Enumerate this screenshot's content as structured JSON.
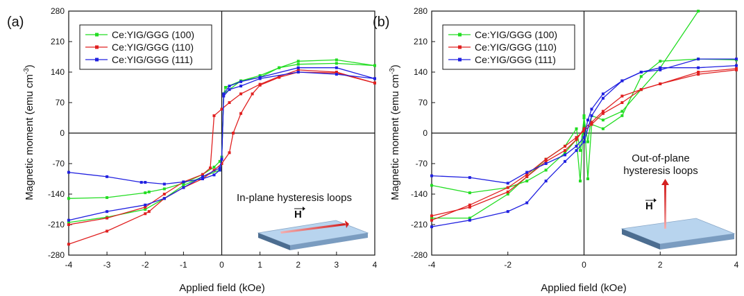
{
  "chart_data": [
    {
      "type": "line",
      "panel_label": "(a)",
      "xlabel": "Applied field (kOe)",
      "ylabel": "Magnetic moment (emu cm",
      "ylabel_sup": "-3",
      "ylabel_close": ")",
      "xlim": [
        -4,
        4
      ],
      "ylim": [
        -280,
        280
      ],
      "xticks": [
        "-4",
        "-3",
        "-2",
        "-1",
        "0",
        "1",
        "2",
        "3",
        "4"
      ],
      "yticks": [
        "-280",
        "-210",
        "-140",
        "-70",
        "0",
        "70",
        "140",
        "210",
        "280"
      ],
      "annotation": [
        "In-plane hysteresis loops"
      ],
      "field_label": "H",
      "arrow_direction": "in-plane",
      "legend_position": "top-left",
      "series": [
        {
          "name": "Ce:YIG/GGG (100)",
          "color": "#22dd22",
          "x": [
            -4,
            -3,
            -2,
            -1.9,
            -1.5,
            -1,
            -0.5,
            -0.2,
            -0.05,
            0,
            0.05,
            0.5,
            1,
            1.5,
            2,
            3,
            4
          ],
          "y": [
            -150,
            -148,
            -137,
            -135,
            -128,
            -115,
            -95,
            -78,
            -65,
            -55,
            90,
            120,
            128,
            150,
            165,
            168,
            155
          ]
        },
        {
          "name": "Ce:YIG/GGG (100)",
          "color": "#22dd22",
          "x": [
            4,
            3,
            2,
            1.5,
            1,
            0.5,
            0.1,
            0.05,
            0,
            -0.05,
            -0.5,
            -1,
            -1.5,
            -2,
            -3,
            -4
          ],
          "y": [
            155,
            160,
            158,
            150,
            132,
            120,
            105,
            90,
            -60,
            -85,
            -100,
            -120,
            -150,
            -175,
            -193,
            -205
          ]
        },
        {
          "name": "Ce:YIG/GGG (110)",
          "color": "#e02020",
          "x": [
            -4,
            -3,
            -2,
            -1.9,
            -1.5,
            -1,
            -0.5,
            -0.2,
            0,
            0.2,
            0.3,
            0.5,
            0.8,
            1,
            1.5,
            2,
            3,
            4
          ],
          "y": [
            -255,
            -225,
            -185,
            -180,
            -150,
            -125,
            -105,
            -85,
            -70,
            -45,
            0,
            45,
            90,
            110,
            128,
            140,
            138,
            115
          ]
        },
        {
          "name": "Ce:YIG/GGG (110)",
          "color": "#e02020",
          "x": [
            4,
            3,
            2,
            1.5,
            1,
            0.5,
            0.2,
            0,
            -0.2,
            -0.3,
            -0.5,
            -1,
            -1.5,
            -2,
            -3,
            -4
          ],
          "y": [
            115,
            140,
            145,
            130,
            112,
            90,
            70,
            55,
            40,
            -80,
            -95,
            -112,
            -140,
            -170,
            -195,
            -210
          ]
        },
        {
          "name": "Ce:YIG/GGG (111)",
          "color": "#2020e0",
          "x": [
            -4,
            -3,
            -2.1,
            -2,
            -1.5,
            -1,
            -0.5,
            -0.2,
            -0.05,
            0,
            0.05,
            0.2,
            0.5,
            1,
            2,
            3,
            4
          ],
          "y": [
            -90,
            -100,
            -113,
            -113,
            -117,
            -112,
            -105,
            -96,
            -85,
            -60,
            85,
            100,
            108,
            125,
            140,
            135,
            125
          ]
        },
        {
          "name": "Ce:YIG/GGG (111)",
          "color": "#2020e0",
          "x": [
            4,
            3,
            2,
            1,
            0.5,
            0.2,
            0.05,
            0,
            -0.05,
            -0.5,
            -1,
            -1.5,
            -2,
            -3,
            -4
          ],
          "y": [
            125,
            150,
            150,
            128,
            118,
            108,
            90,
            -60,
            -80,
            -100,
            -125,
            -150,
            -165,
            -180,
            -200
          ]
        }
      ]
    },
    {
      "type": "line",
      "panel_label": "(b)",
      "xlabel": "Applied field (kOe)",
      "ylabel": "Magnetic moment (emu cm",
      "ylabel_sup": "-3",
      "ylabel_close": ")",
      "xlim": [
        -4,
        4
      ],
      "ylim": [
        -280,
        280
      ],
      "xticks": [
        "-4",
        "-2",
        "0",
        "2",
        "4"
      ],
      "yticks": [
        "-280",
        "-210",
        "-140",
        "-70",
        "0",
        "70",
        "140",
        "210",
        "280"
      ],
      "annotation": [
        "Out-of-plane",
        "hysteresis loops"
      ],
      "field_label": "H",
      "arrow_direction": "out-of-plane",
      "legend_position": "top-left",
      "series": [
        {
          "name": "Ce:YIG/GGG (100)",
          "color": "#22dd22",
          "x": [
            -4,
            -3,
            -2,
            -1.5,
            -1,
            -0.5,
            -0.2,
            -0.1,
            0,
            0.1,
            0.2,
            0.5,
            1,
            1.5,
            2,
            3,
            4
          ],
          "y": [
            -120,
            -137,
            -125,
            -110,
            -85,
            -45,
            -15,
            -110,
            40,
            -105,
            20,
            10,
            40,
            130,
            165,
            170,
            168
          ]
        },
        {
          "name": "Ce:YIG/GGG (100)",
          "color": "#22dd22",
          "x": [
            3,
            2,
            1.5,
            1,
            0.5,
            0.2,
            0.1,
            0,
            -0.1,
            -0.2,
            -0.5,
            -1,
            -1.5,
            -2,
            -3,
            -4
          ],
          "y": [
            280,
            150,
            100,
            50,
            30,
            40,
            -20,
            35,
            -40,
            10,
            -30,
            -60,
            -100,
            -140,
            -195,
            -195
          ]
        },
        {
          "name": "Ce:YIG/GGG (110)",
          "color": "#e02020",
          "x": [
            -4,
            -3,
            -2,
            -1.5,
            -1,
            -0.5,
            -0.2,
            0,
            0.2,
            0.5,
            1,
            1.5,
            2,
            3,
            4
          ],
          "y": [
            -200,
            -165,
            -125,
            -95,
            -60,
            -30,
            -10,
            5,
            20,
            45,
            70,
            100,
            113,
            140,
            148
          ]
        },
        {
          "name": "Ce:YIG/GGG (110)",
          "color": "#e02020",
          "x": [
            4,
            3,
            2,
            1.5,
            1,
            0.5,
            0.2,
            0,
            -0.2,
            -0.5,
            -1,
            -1.5,
            -2,
            -3,
            -4
          ],
          "y": [
            145,
            135,
            113,
            100,
            85,
            50,
            25,
            10,
            -15,
            -40,
            -65,
            -100,
            -135,
            -170,
            -190
          ]
        },
        {
          "name": "Ce:YIG/GGG (111)",
          "color": "#2020e0",
          "x": [
            -4,
            -3,
            -2,
            -1.5,
            -1,
            -0.5,
            -0.2,
            0,
            0.1,
            0.2,
            0.5,
            1,
            1.5,
            2,
            3,
            4
          ],
          "y": [
            -98,
            -102,
            -115,
            -90,
            -70,
            -50,
            -30,
            -10,
            30,
            55,
            90,
            120,
            140,
            150,
            150,
            155
          ]
        },
        {
          "name": "Ce:YIG/GGG (111)",
          "color": "#2020e0",
          "x": [
            4,
            3,
            2,
            1.5,
            1,
            0.5,
            0.2,
            0,
            -0.2,
            -0.5,
            -1,
            -1.5,
            -2,
            -3,
            -4
          ],
          "y": [
            170,
            170,
            145,
            140,
            120,
            80,
            40,
            -20,
            -40,
            -65,
            -110,
            -160,
            -180,
            -200,
            -215
          ]
        }
      ]
    }
  ]
}
